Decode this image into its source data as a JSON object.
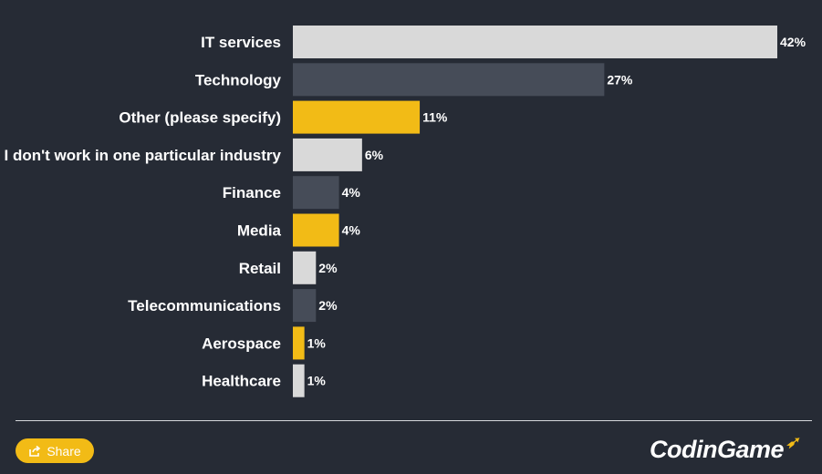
{
  "chart_data": {
    "type": "bar",
    "orientation": "horizontal",
    "title": "",
    "xlabel": "",
    "ylabel": "",
    "xlim": [
      0,
      42
    ],
    "grid": false,
    "categories": [
      "IT services",
      "Technology",
      "Other (please specify)",
      "I don't work in one particular industry",
      "Finance",
      "Media",
      "Retail",
      "Telecommunications",
      "Aerospace",
      "Healthcare"
    ],
    "values": [
      42,
      27,
      11,
      6,
      4,
      4,
      2,
      2,
      1,
      1
    ],
    "value_labels": [
      "42%",
      "27%",
      "11%",
      "6%",
      "4%",
      "4%",
      "2%",
      "2%",
      "1%",
      "1%"
    ],
    "bar_colors": [
      "#d9d9d9",
      "#464c58",
      "#f2bb16",
      "#d9d9d9",
      "#464c58",
      "#f2bb16",
      "#d9d9d9",
      "#464c58",
      "#f2bb16",
      "#d9d9d9"
    ]
  },
  "colors": {
    "background": "#262b35",
    "text": "#ffffff",
    "accent": "#f2bb16"
  },
  "footer": {
    "share_label": "Share",
    "share_icon": "share-icon",
    "logo_text": "CodinGame"
  }
}
